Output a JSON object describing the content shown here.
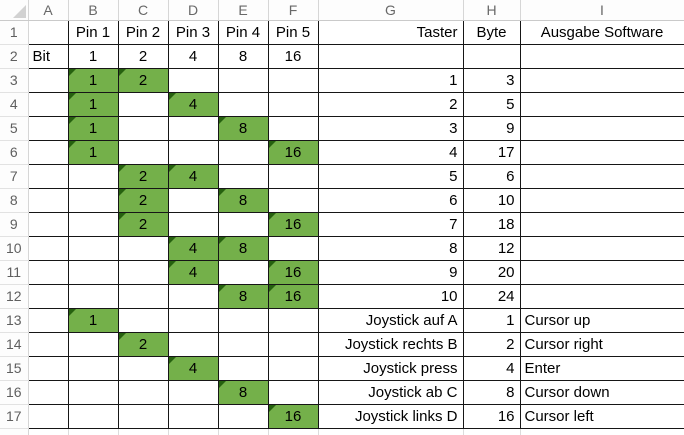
{
  "colors": {
    "cell_fill_green": "#74b04a",
    "error_indicator_triangle": "#26610f",
    "table_border": "#161616",
    "header_text": "#686868",
    "light_gridline": "#d6d6d6"
  },
  "sheet": {
    "column_headers": [
      "A",
      "B",
      "C",
      "D",
      "E",
      "F",
      "G",
      "H",
      "I"
    ],
    "row_headers": [
      "1",
      "2",
      "3",
      "4",
      "5",
      "6",
      "7",
      "8",
      "9",
      "10",
      "11",
      "12",
      "13",
      "14",
      "15",
      "16",
      "17"
    ],
    "rows": [
      {
        "r": 1,
        "cells": [
          {
            "c": "B",
            "v": "Pin 1"
          },
          {
            "c": "C",
            "v": "Pin 2"
          },
          {
            "c": "D",
            "v": "Pin 3"
          },
          {
            "c": "E",
            "v": "Pin 4"
          },
          {
            "c": "F",
            "v": "Pin 5"
          },
          {
            "c": "G",
            "v": "Taster"
          },
          {
            "c": "H",
            "v": "Byte",
            "a": "c"
          },
          {
            "c": "I",
            "v": "Ausgabe Software",
            "a": "c"
          }
        ]
      },
      {
        "r": 2,
        "cells": [
          {
            "c": "A",
            "v": "Bit"
          },
          {
            "c": "B",
            "v": "1"
          },
          {
            "c": "C",
            "v": "2"
          },
          {
            "c": "D",
            "v": "4"
          },
          {
            "c": "E",
            "v": "8"
          },
          {
            "c": "F",
            "v": "16"
          }
        ]
      },
      {
        "r": 3,
        "cells": [
          {
            "c": "B",
            "v": "1",
            "g": true
          },
          {
            "c": "C",
            "v": "2",
            "g": true
          },
          {
            "c": "G",
            "v": "1"
          },
          {
            "c": "H",
            "v": "3"
          }
        ]
      },
      {
        "r": 4,
        "cells": [
          {
            "c": "B",
            "v": "1",
            "g": true
          },
          {
            "c": "D",
            "v": "4",
            "g": true
          },
          {
            "c": "G",
            "v": "2"
          },
          {
            "c": "H",
            "v": "5"
          }
        ]
      },
      {
        "r": 5,
        "cells": [
          {
            "c": "B",
            "v": "1",
            "g": true
          },
          {
            "c": "E",
            "v": "8",
            "g": true
          },
          {
            "c": "G",
            "v": "3"
          },
          {
            "c": "H",
            "v": "9"
          }
        ]
      },
      {
        "r": 6,
        "cells": [
          {
            "c": "B",
            "v": "1",
            "g": true
          },
          {
            "c": "F",
            "v": "16",
            "g": true
          },
          {
            "c": "G",
            "v": "4"
          },
          {
            "c": "H",
            "v": "17"
          }
        ]
      },
      {
        "r": 7,
        "cells": [
          {
            "c": "C",
            "v": "2",
            "g": true
          },
          {
            "c": "D",
            "v": "4",
            "g": true
          },
          {
            "c": "G",
            "v": "5"
          },
          {
            "c": "H",
            "v": "6"
          }
        ]
      },
      {
        "r": 8,
        "cells": [
          {
            "c": "C",
            "v": "2",
            "g": true
          },
          {
            "c": "E",
            "v": "8",
            "g": true
          },
          {
            "c": "G",
            "v": "6"
          },
          {
            "c": "H",
            "v": "10"
          }
        ]
      },
      {
        "r": 9,
        "cells": [
          {
            "c": "C",
            "v": "2",
            "g": true
          },
          {
            "c": "F",
            "v": "16",
            "g": true
          },
          {
            "c": "G",
            "v": "7"
          },
          {
            "c": "H",
            "v": "18"
          }
        ]
      },
      {
        "r": 10,
        "cells": [
          {
            "c": "D",
            "v": "4",
            "g": true
          },
          {
            "c": "E",
            "v": "8",
            "g": true
          },
          {
            "c": "G",
            "v": "8"
          },
          {
            "c": "H",
            "v": "12"
          }
        ]
      },
      {
        "r": 11,
        "cells": [
          {
            "c": "D",
            "v": "4",
            "g": true
          },
          {
            "c": "F",
            "v": "16",
            "g": true
          },
          {
            "c": "G",
            "v": "9"
          },
          {
            "c": "H",
            "v": "20"
          }
        ]
      },
      {
        "r": 12,
        "cells": [
          {
            "c": "E",
            "v": "8",
            "g": true
          },
          {
            "c": "F",
            "v": "16",
            "g": true
          },
          {
            "c": "G",
            "v": "10"
          },
          {
            "c": "H",
            "v": "24"
          }
        ]
      },
      {
        "r": 13,
        "cells": [
          {
            "c": "B",
            "v": "1",
            "g": true
          },
          {
            "c": "G",
            "v": "Joystick auf A"
          },
          {
            "c": "H",
            "v": "1"
          },
          {
            "c": "I",
            "v": "Cursor up"
          }
        ]
      },
      {
        "r": 14,
        "cells": [
          {
            "c": "C",
            "v": "2",
            "g": true
          },
          {
            "c": "G",
            "v": "Joystick rechts B"
          },
          {
            "c": "H",
            "v": "2"
          },
          {
            "c": "I",
            "v": "Cursor right"
          }
        ]
      },
      {
        "r": 15,
        "cells": [
          {
            "c": "D",
            "v": "4",
            "g": true
          },
          {
            "c": "G",
            "v": "Joystick press"
          },
          {
            "c": "H",
            "v": "4"
          },
          {
            "c": "I",
            "v": "Enter"
          }
        ]
      },
      {
        "r": 16,
        "cells": [
          {
            "c": "E",
            "v": "8",
            "g": true
          },
          {
            "c": "G",
            "v": "Joystick ab C"
          },
          {
            "c": "H",
            "v": "8"
          },
          {
            "c": "I",
            "v": "Cursor down"
          }
        ]
      },
      {
        "r": 17,
        "cells": [
          {
            "c": "F",
            "v": "16",
            "g": true
          },
          {
            "c": "G",
            "v": "Joystick links D"
          },
          {
            "c": "H",
            "v": "16"
          },
          {
            "c": "I",
            "v": "Cursor left"
          }
        ]
      }
    ]
  }
}
